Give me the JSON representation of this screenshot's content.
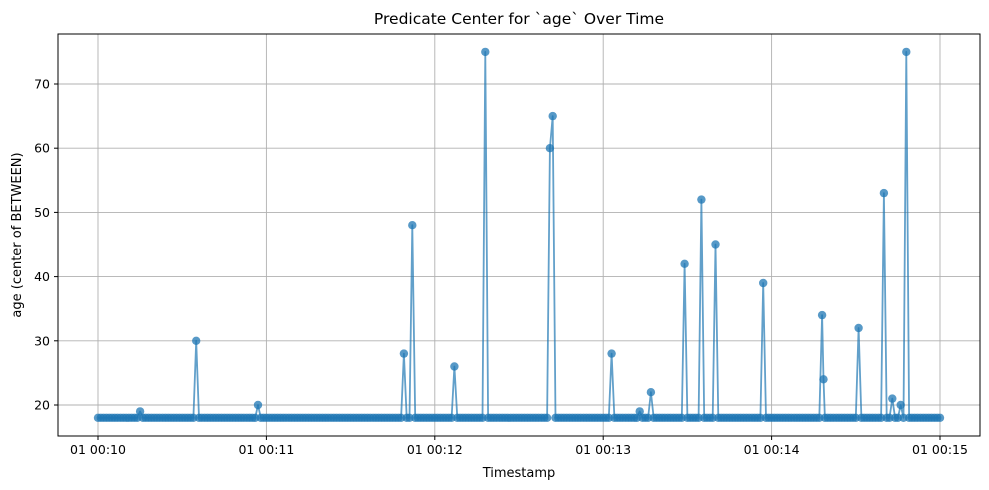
{
  "chart_data": {
    "type": "line",
    "title": "Predicate Center for `age` Over Time",
    "xlabel": "Timestamp",
    "ylabel": "age (center of BETWEEN)",
    "grid": true,
    "x_ticks": [
      "01 00:10",
      "01 00:11",
      "01 00:12",
      "01 00:13",
      "01 00:14",
      "01 00:15"
    ],
    "y_ticks": [
      20,
      30,
      40,
      50,
      60,
      70
    ],
    "x_range_minutes": [
      "00:10",
      "00:15"
    ],
    "ylim": [
      15.1,
      77.9
    ],
    "baseline_value": 18,
    "series": [
      {
        "marker": "circle",
        "color": "#1f77b4",
        "points": [
          {
            "t": "00:10:00",
            "y": 18
          },
          {
            "t": "00:10:15",
            "y": 19
          },
          {
            "t": "00:10:35",
            "y": 30
          },
          {
            "t": "00:10:57",
            "y": 20
          },
          {
            "t": "00:11:49",
            "y": 28
          },
          {
            "t": "00:11:52",
            "y": 48
          },
          {
            "t": "00:12:07",
            "y": 26
          },
          {
            "t": "00:12:18",
            "y": 75
          },
          {
            "t": "00:12:41",
            "y": 60
          },
          {
            "t": "00:12:42",
            "y": 65
          },
          {
            "t": "00:13:03",
            "y": 28
          },
          {
            "t": "00:13:13",
            "y": 19
          },
          {
            "t": "00:13:17",
            "y": 22
          },
          {
            "t": "00:13:29",
            "y": 42
          },
          {
            "t": "00:13:35",
            "y": 52
          },
          {
            "t": "00:13:40",
            "y": 45
          },
          {
            "t": "00:13:57",
            "y": 39
          },
          {
            "t": "00:14:18",
            "y": 34
          },
          {
            "t": "00:14:18.5",
            "y": 24
          },
          {
            "t": "00:14:31",
            "y": 32
          },
          {
            "t": "00:14:40",
            "y": 53
          },
          {
            "t": "00:14:43",
            "y": 21
          },
          {
            "t": "00:14:46",
            "y": 20
          },
          {
            "t": "00:14:48",
            "y": 75
          },
          {
            "t": "00:15:00",
            "y": 18
          }
        ]
      }
    ]
  }
}
